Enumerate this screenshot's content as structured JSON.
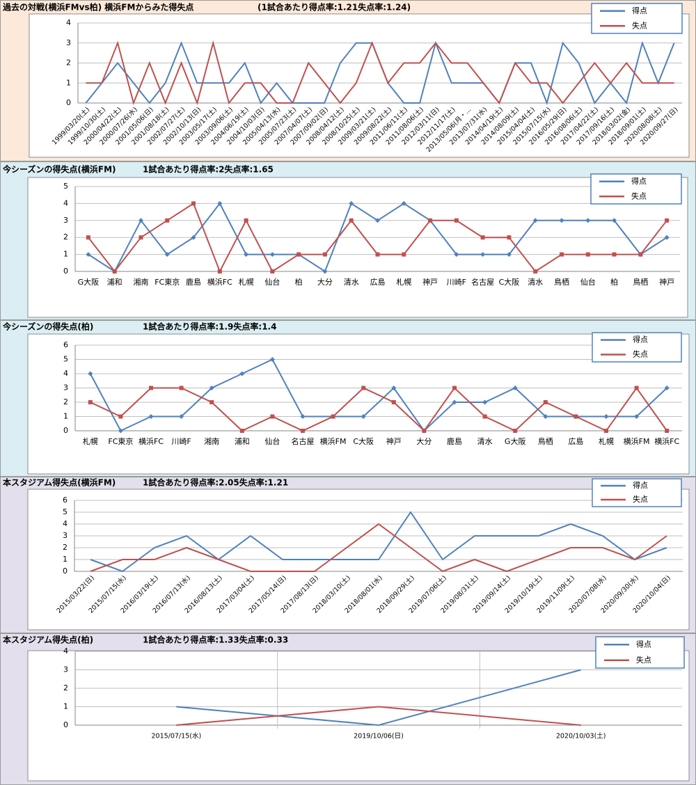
{
  "chart_data": [
    {
      "type": "line",
      "title": "過去の対戦(横浜FMvs柏)  横浜FMからみた得失点",
      "subtitle": "(1試合あたり得点率:1.21失点率:1.24)",
      "categories": [
        "1999/03/20(土)",
        "1999/10/30(土)",
        "2000/04/22(土)",
        "2000/07/26(水)",
        "2001/05/06(日)",
        "2001/08/18(土)",
        "2002/07/27(土)",
        "2002/10/13(日)",
        "2003/05/17(土)",
        "2003/09/06(土)",
        "2004/06/19(土)",
        "2004/10/03(日)",
        "2005/04/13(水)",
        "2005/07/23(土)",
        "2007/04/07(土)",
        "2007/09/02(日)",
        "2008/04/12(土)",
        "2008/10/25(土)",
        "2009/03/21(土)",
        "2009/08/22(土)",
        "2011/06/11(土)",
        "2011/08/06(土)",
        "2012/03/11(日)",
        "2012/11/17(土)",
        "2013/05/06(月・...",
        "2013/07/31(水)",
        "2014/04/19(土)",
        "2014/08/09(土)",
        "2015/04/04(土)",
        "2015/07/15(水)",
        "2016/05/29(日)",
        "2016/08/06(土)",
        "2017/04/22(土)",
        "2017/09/16(土)",
        "2018/03/02(金)",
        "2018/09/01(土)",
        "2020/08/08(土)",
        "2020/09/27(日)"
      ],
      "series": [
        {
          "name": "得点",
          "color": "#4f81bd",
          "values": [
            0,
            1,
            2,
            1,
            0,
            1,
            3,
            1,
            1,
            1,
            2,
            0,
            1,
            0,
            0,
            0,
            2,
            3,
            3,
            1,
            0,
            0,
            3,
            1,
            1,
            1,
            0,
            2,
            2,
            0,
            3,
            2,
            0,
            1,
            0,
            3,
            1,
            3
          ]
        },
        {
          "name": "失点",
          "color": "#c0504d",
          "values": [
            1,
            1,
            3,
            0,
            2,
            0,
            2,
            0,
            3,
            0,
            1,
            1,
            0,
            0,
            2,
            1,
            0,
            1,
            3,
            1,
            2,
            2,
            3,
            2,
            2,
            1,
            0,
            2,
            1,
            1,
            0,
            1,
            2,
            1,
            2,
            1,
            1,
            1
          ]
        }
      ],
      "ylim": [
        0,
        4
      ],
      "yticks": [
        0,
        1,
        2,
        3,
        4
      ],
      "grid": true,
      "rotate_labels": true,
      "legend": "top-right"
    },
    {
      "type": "line",
      "title": "今シーズンの得失点(横浜FM)",
      "subtitle": "1試合あたり得点率:2失点率:1.65",
      "categories": [
        "G大阪",
        "浦和",
        "湘南",
        "FC東京",
        "鹿島",
        "横浜FC",
        "札幌",
        "仙台",
        "柏",
        "大分",
        "清水",
        "広島",
        "札幌",
        "神戸",
        "川崎F",
        "名古屋",
        "C大阪",
        "清水",
        "鳥栖",
        "仙台",
        "柏",
        "鳥栖",
        "神戸"
      ],
      "series": [
        {
          "name": "得点",
          "color": "#4f81bd",
          "marker": "diamond",
          "values": [
            1,
            0,
            3,
            1,
            2,
            4,
            1,
            1,
            1,
            0,
            4,
            3,
            4,
            3,
            1,
            1,
            1,
            3,
            3,
            3,
            3,
            1,
            2
          ]
        },
        {
          "name": "失点",
          "color": "#c0504d",
          "marker": "square",
          "values": [
            2,
            0,
            2,
            3,
            4,
            0,
            3,
            0,
            1,
            1,
            3,
            1,
            1,
            3,
            3,
            2,
            2,
            0,
            1,
            1,
            1,
            1,
            3
          ]
        }
      ],
      "ylim": [
        0,
        5
      ],
      "yticks": [
        0,
        1,
        2,
        3,
        4,
        5
      ],
      "grid": true,
      "legend": "top-right"
    },
    {
      "type": "line",
      "title": "今シーズンの得失点(柏)",
      "subtitle": "1試合あたり得点率:1.9失点率:1.4",
      "categories": [
        "札幌",
        "FC東京",
        "横浜FC",
        "川崎F",
        "湘南",
        "浦和",
        "仙台",
        "名古屋",
        "横浜FM",
        "C大阪",
        "神戸",
        "大分",
        "鹿島",
        "清水",
        "G大阪",
        "鳥栖",
        "広島",
        "札幌",
        "横浜FM",
        "横浜FC"
      ],
      "series": [
        {
          "name": "得点",
          "color": "#4f81bd",
          "marker": "diamond",
          "values": [
            4,
            0,
            1,
            1,
            3,
            4,
            5,
            1,
            1,
            1,
            3,
            0,
            2,
            2,
            3,
            1,
            1,
            1,
            1,
            3
          ]
        },
        {
          "name": "失点",
          "color": "#c0504d",
          "marker": "square",
          "values": [
            2,
            1,
            3,
            3,
            2,
            0,
            1,
            0,
            1,
            3,
            2,
            0,
            3,
            1,
            0,
            2,
            1,
            0,
            3,
            0
          ]
        }
      ],
      "ylim": [
        0,
        6
      ],
      "yticks": [
        0,
        1,
        2,
        3,
        4,
        5,
        6
      ],
      "grid": true,
      "legend": "top-right"
    },
    {
      "type": "line",
      "title": "本スタジアム得失点(横浜FM)",
      "subtitle": "1試合あたり得点率:2.05失点率:1.21",
      "categories": [
        "2015/03/22(日)",
        "2015/07/15(水)",
        "2016/03/19(土)",
        "2016/07/13(水)",
        "2016/08/13(土)",
        "2017/03/04(土)",
        "2017/05/14(日)",
        "2017/08/13(日)",
        "2018/03/10(土)",
        "2018/08/01(水)",
        "2018/09/29(土)",
        "2019/07/06(土)",
        "2019/08/31(土)",
        "2019/09/14(土)",
        "2019/10/19(土)",
        "2019/11/09(土)",
        "2020/07/08(水)",
        "2020/09/30(水)",
        "2020/10/04(日)"
      ],
      "series": [
        {
          "name": "得点",
          "color": "#4f81bd",
          "values": [
            1,
            0,
            2,
            3,
            1,
            3,
            1,
            1,
            1,
            1,
            5,
            1,
            3,
            3,
            3,
            4,
            3,
            1,
            2
          ]
        },
        {
          "name": "失点",
          "color": "#c0504d",
          "values": [
            0,
            1,
            1,
            2,
            1,
            0,
            0,
            0,
            2,
            4,
            2,
            0,
            1,
            0,
            1,
            2,
            2,
            1,
            3
          ]
        }
      ],
      "ylim": [
        0,
        6
      ],
      "yticks": [
        0,
        1,
        2,
        3,
        4,
        5,
        6
      ],
      "grid": true,
      "rotate_labels": true,
      "legend": "top-right"
    },
    {
      "type": "line",
      "title": "本スタジアム得失点(柏)",
      "subtitle": "1試合あたり得点率:1.33失点率:0.33",
      "categories": [
        "2015/07/15(水)",
        "2019/10/06(日)",
        "2020/10/03(土)"
      ],
      "series": [
        {
          "name": "得点",
          "color": "#4f81bd",
          "values": [
            1,
            0,
            3
          ]
        },
        {
          "name": "失点",
          "color": "#c0504d",
          "values": [
            0,
            1,
            0
          ]
        }
      ],
      "ylim": [
        0,
        4
      ],
      "yticks": [
        0,
        1,
        2,
        3,
        4
      ],
      "grid": true,
      "xgrid": true,
      "legend": "top-right"
    }
  ]
}
